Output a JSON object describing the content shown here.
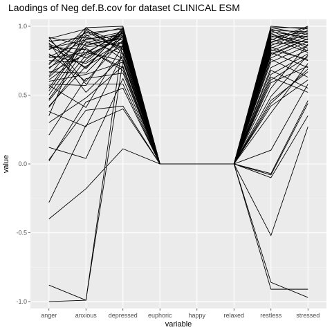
{
  "chart_data": {
    "type": "line",
    "title": "Laodings of Neg def.B.cov for dataset CLINICAL ESM",
    "xlabel": "variable",
    "ylabel": "value",
    "categories": [
      "anger",
      "anxious",
      "depressed",
      "euphoric",
      "happy",
      "relaxed",
      "restless",
      "stressed"
    ],
    "ylim": [
      -1.05,
      1.05
    ],
    "yticks": [
      -1.0,
      -0.5,
      0.0,
      0.5,
      1.0
    ],
    "ytick_labels": [
      "-1.0",
      "-0.5",
      "0.0",
      "0.5",
      "1.0"
    ],
    "grid": true,
    "colors": {
      "panel_background": "#ebebeb",
      "grid_major": "#ffffff",
      "grid_minor": "#f5f5f5",
      "line": "#000000"
    },
    "series": [
      {
        "values": [
          -1.0,
          -0.99,
          0.9,
          0.0,
          0.0,
          0.0,
          -0.91,
          -0.91
        ]
      },
      {
        "values": [
          -0.88,
          -0.99,
          0.75,
          0.0,
          0.0,
          0.0,
          -0.86,
          -0.97
        ]
      },
      {
        "values": [
          -0.4,
          -0.18,
          0.11,
          0.0,
          0.0,
          0.0,
          -0.52,
          0.27
        ]
      },
      {
        "values": [
          -0.28,
          0.28,
          0.4,
          0.0,
          0.0,
          0.0,
          -0.1,
          0.35
        ]
      },
      {
        "values": [
          0.02,
          0.45,
          0.55,
          0.0,
          0.0,
          0.0,
          -0.08,
          0.44
        ]
      },
      {
        "values": [
          0.03,
          0.39,
          0.42,
          0.0,
          0.0,
          0.0,
          -0.07,
          0.46
        ]
      },
      {
        "values": [
          0.12,
          0.04,
          0.62,
          0.0,
          0.0,
          0.0,
          0.1,
          0.58
        ]
      },
      {
        "values": [
          0.21,
          0.62,
          0.66,
          0.0,
          0.0,
          0.0,
          0.42,
          0.61
        ]
      },
      {
        "values": [
          0.3,
          0.48,
          0.71,
          0.0,
          0.0,
          0.0,
          0.46,
          0.67
        ]
      },
      {
        "values": [
          0.38,
          0.27,
          0.8,
          0.0,
          0.0,
          0.0,
          0.59,
          0.71
        ]
      },
      {
        "values": [
          0.42,
          0.71,
          0.86,
          0.0,
          0.0,
          0.0,
          0.61,
          0.78
        ]
      },
      {
        "values": [
          0.46,
          0.79,
          0.91,
          0.0,
          0.0,
          0.0,
          0.65,
          0.8
        ]
      },
      {
        "values": [
          0.5,
          0.88,
          0.95,
          0.0,
          0.0,
          0.0,
          0.7,
          0.83
        ]
      },
      {
        "values": [
          0.55,
          0.93,
          0.99,
          0.0,
          0.0,
          0.0,
          0.74,
          0.86
        ]
      },
      {
        "values": [
          0.58,
          0.57,
          0.97,
          0.0,
          0.0,
          0.0,
          0.77,
          0.89
        ]
      },
      {
        "values": [
          0.61,
          0.81,
          0.75,
          0.0,
          0.0,
          0.0,
          0.8,
          0.91
        ]
      },
      {
        "values": [
          0.64,
          0.97,
          0.84,
          0.0,
          0.0,
          0.0,
          0.82,
          0.93
        ]
      },
      {
        "values": [
          0.67,
          0.66,
          0.93,
          0.0,
          0.0,
          0.0,
          0.84,
          0.95
        ]
      },
      {
        "values": [
          0.7,
          0.85,
          0.88,
          0.0,
          0.0,
          0.0,
          0.86,
          0.97
        ]
      },
      {
        "values": [
          0.72,
          0.99,
          1.0,
          0.0,
          0.0,
          0.0,
          0.88,
          0.99
        ]
      },
      {
        "values": [
          0.75,
          0.74,
          0.96,
          0.0,
          0.0,
          0.0,
          0.9,
          1.0
        ]
      },
      {
        "values": [
          0.78,
          0.89,
          0.8,
          0.0,
          0.0,
          0.0,
          0.92,
          0.96
        ]
      },
      {
        "values": [
          0.8,
          0.6,
          0.9,
          0.0,
          0.0,
          0.0,
          0.94,
          0.88
        ]
      },
      {
        "values": [
          0.83,
          0.95,
          0.98,
          0.0,
          0.0,
          0.0,
          0.96,
          0.92
        ]
      },
      {
        "values": [
          0.85,
          0.83,
          0.7,
          0.0,
          0.0,
          0.0,
          0.97,
          0.84
        ]
      },
      {
        "values": [
          0.87,
          0.77,
          0.94,
          0.0,
          0.0,
          0.0,
          0.98,
          0.9
        ]
      },
      {
        "values": [
          0.89,
          0.92,
          0.85,
          0.0,
          0.0,
          0.0,
          0.99,
          0.94
        ]
      },
      {
        "values": [
          0.9,
          0.69,
          0.99,
          0.0,
          0.0,
          0.0,
          1.0,
          0.98
        ]
      },
      {
        "values": [
          0.91,
          0.98,
          0.87,
          0.0,
          0.0,
          0.0,
          0.95,
          0.82
        ]
      },
      {
        "values": [
          0.92,
          0.86,
          0.92,
          0.0,
          0.0,
          0.0,
          0.93,
          0.86
        ]
      },
      {
        "values": [
          0.88,
          0.52,
          0.78,
          0.0,
          0.0,
          0.0,
          0.85,
          0.75
        ]
      },
      {
        "values": [
          0.84,
          0.9,
          0.96,
          0.0,
          0.0,
          0.0,
          0.81,
          0.7
        ]
      },
      {
        "values": [
          0.79,
          0.73,
          0.89,
          0.0,
          0.0,
          0.0,
          0.76,
          0.63
        ]
      },
      {
        "values": [
          0.73,
          0.96,
          0.83,
          0.0,
          0.0,
          0.0,
          0.68,
          0.55
        ]
      },
      {
        "values": [
          0.66,
          0.8,
          0.97,
          0.0,
          0.0,
          0.0,
          0.63,
          0.52
        ]
      },
      {
        "values": [
          0.6,
          0.65,
          0.74,
          0.0,
          0.0,
          0.0,
          0.55,
          0.87
        ]
      },
      {
        "values": [
          0.53,
          0.91,
          0.93,
          0.0,
          0.0,
          0.0,
          0.49,
          0.79
        ]
      },
      {
        "values": [
          0.47,
          0.84,
          0.68,
          0.0,
          0.0,
          0.0,
          0.37,
          0.73
        ]
      },
      {
        "values": [
          0.41,
          0.76,
          0.95,
          0.0,
          0.0,
          0.0,
          0.44,
          0.69
        ]
      },
      {
        "values": [
          0.35,
          0.99,
          0.81,
          0.0,
          0.0,
          0.0,
          0.89,
          0.93
        ]
      },
      {
        "values": [
          0.92,
          0.58,
          0.58,
          0.0,
          0.0,
          0.0,
          0.91,
          0.81
        ]
      },
      {
        "values": [
          0.86,
          0.7,
          0.98,
          0.0,
          0.0,
          0.0,
          0.97,
          0.96
        ]
      },
      {
        "values": [
          0.63,
          0.87,
          0.91,
          0.0,
          0.0,
          0.0,
          0.83,
          0.76
        ]
      },
      {
        "values": [
          0.57,
          0.41,
          0.86,
          0.0,
          0.0,
          0.0,
          0.79,
          0.91
        ]
      },
      {
        "values": [
          0.69,
          0.94,
          0.76,
          0.0,
          0.0,
          0.0,
          0.99,
          0.99
        ]
      },
      {
        "values": [
          0.77,
          0.81,
          0.95,
          0.0,
          0.0,
          0.0,
          0.87,
          0.89
        ]
      }
    ]
  }
}
